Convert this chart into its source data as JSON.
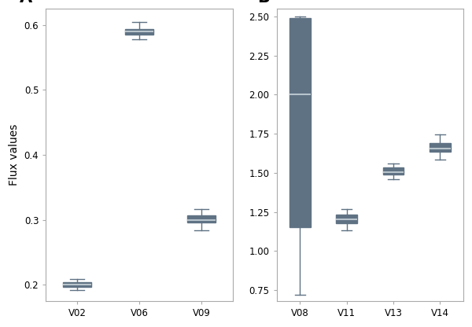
{
  "panel_A": {
    "label": "A",
    "categories": [
      "V02",
      "V06",
      "V09"
    ],
    "boxes": [
      {
        "med": 0.2,
        "q1": 0.197,
        "q3": 0.204,
        "whislo": 0.192,
        "whishi": 0.209
      },
      {
        "med": 0.59,
        "q1": 0.585,
        "q3": 0.594,
        "whislo": 0.578,
        "whishi": 0.605
      },
      {
        "med": 0.3,
        "q1": 0.296,
        "q3": 0.307,
        "whislo": 0.284,
        "whishi": 0.317
      }
    ],
    "ylabel": "Flux values",
    "ylim": [
      0.175,
      0.625
    ],
    "yticks": [
      0.2,
      0.3,
      0.4,
      0.5,
      0.6
    ]
  },
  "panel_B": {
    "label": "B",
    "categories": [
      "V08",
      "V11",
      "V13",
      "V14"
    ],
    "boxes": [
      {
        "med": 2.0,
        "q1": 1.15,
        "q3": 2.49,
        "whislo": 0.72,
        "whishi": 2.5
      },
      {
        "med": 1.2,
        "q1": 1.175,
        "q3": 1.235,
        "whislo": 1.13,
        "whishi": 1.27
      },
      {
        "med": 1.505,
        "q1": 1.49,
        "q3": 1.535,
        "whislo": 1.46,
        "whishi": 1.56
      },
      {
        "med": 1.655,
        "q1": 1.635,
        "q3": 1.69,
        "whislo": 1.585,
        "whishi": 1.745
      }
    ],
    "ylabel": "",
    "ylim": [
      0.68,
      2.55
    ],
    "yticks": [
      0.75,
      1.0,
      1.25,
      1.5,
      1.75,
      2.0,
      2.25,
      2.5
    ]
  },
  "box_color": "#5f7284",
  "median_color": "#b8c4cc",
  "whisker_color": "#5f7284",
  "box_width": 0.45,
  "linewidth": 1.0,
  "figsize": [
    6.0,
    4.16
  ],
  "dpi": 100,
  "bg_color": "#ffffff",
  "label_fontsize": 15,
  "tick_fontsize": 8.5,
  "ylabel_fontsize": 10
}
